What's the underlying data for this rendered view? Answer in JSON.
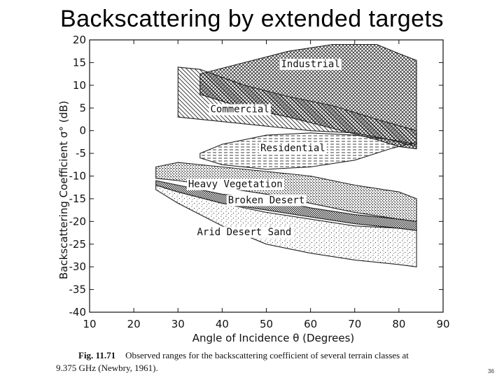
{
  "slide": {
    "title": "Backscattering by extended targets",
    "page_number": "36"
  },
  "caption": {
    "figure_label": "Fig. 11.71",
    "line1": "Observed ranges for the backscattering coefficient of several terrain classes at",
    "line2": "9.375 GHz (Newbry, 1961)."
  },
  "chart_data": {
    "type": "area",
    "xlabel": "Angle of Incidence θ  (Degrees)",
    "ylabel": "Backscattering Coefficient σ° (dB)",
    "xlim": [
      10,
      90
    ],
    "ylim": [
      -40,
      20
    ],
    "x_ticks": [
      10,
      20,
      30,
      40,
      50,
      60,
      70,
      80,
      90
    ],
    "y_ticks": [
      20,
      15,
      10,
      5,
      0,
      -5,
      -10,
      -15,
      -20,
      -25,
      -30,
      -35,
      -40
    ],
    "grid": false,
    "regions": [
      {
        "name": "Industrial",
        "color": "#222222",
        "upper": [
          [
            35,
            12.5
          ],
          [
            45,
            15
          ],
          [
            55,
            17.5
          ],
          [
            65,
            19
          ],
          [
            75,
            19
          ],
          [
            80,
            17
          ],
          [
            84,
            15.5
          ]
        ],
        "lower": [
          [
            35,
            8
          ],
          [
            45,
            5
          ],
          [
            55,
            3
          ],
          [
            65,
            0.5
          ],
          [
            75,
            -2
          ],
          [
            80,
            -3.5
          ],
          [
            84,
            -4
          ]
        ]
      },
      {
        "name": "Commercial",
        "color": "#222222",
        "upper": [
          [
            30,
            14
          ],
          [
            35,
            13.5
          ],
          [
            45,
            10
          ],
          [
            55,
            7.5
          ],
          [
            65,
            5.5
          ],
          [
            75,
            2.5
          ],
          [
            84,
            0
          ]
        ],
        "lower": [
          [
            30,
            3
          ],
          [
            40,
            2
          ],
          [
            50,
            1
          ],
          [
            60,
            0
          ],
          [
            70,
            -0.5
          ],
          [
            78,
            -2
          ],
          [
            84,
            -3
          ]
        ]
      },
      {
        "name": "Residential",
        "color": "#222222",
        "upper": [
          [
            35,
            -5
          ],
          [
            40,
            -3
          ],
          [
            50,
            -1
          ],
          [
            60,
            -0.5
          ],
          [
            70,
            -1
          ],
          [
            78,
            -2
          ],
          [
            84,
            -3.5
          ]
        ],
        "lower": [
          [
            35,
            -6
          ],
          [
            40,
            -7.5
          ],
          [
            50,
            -8.5
          ],
          [
            60,
            -8
          ],
          [
            70,
            -6.5
          ],
          [
            78,
            -4
          ],
          [
            84,
            -2.5
          ]
        ]
      },
      {
        "name": "Heavy Vegetation",
        "color": "#222222",
        "upper": [
          [
            25,
            -8
          ],
          [
            30,
            -7
          ],
          [
            40,
            -8
          ],
          [
            50,
            -9
          ],
          [
            60,
            -10
          ],
          [
            70,
            -12
          ],
          [
            80,
            -13.5
          ],
          [
            84,
            -15
          ]
        ],
        "lower": [
          [
            25,
            -10.5
          ],
          [
            30,
            -11
          ],
          [
            40,
            -12.5
          ],
          [
            50,
            -14
          ],
          [
            60,
            -16
          ],
          [
            70,
            -18
          ],
          [
            80,
            -19.5
          ],
          [
            84,
            -20
          ]
        ]
      },
      {
        "name": "Broken Desert",
        "color": "#222222",
        "upper": [
          [
            25,
            -11
          ],
          [
            30,
            -12
          ],
          [
            40,
            -14
          ],
          [
            50,
            -15
          ],
          [
            60,
            -17
          ],
          [
            70,
            -18.5
          ],
          [
            80,
            -19.5
          ],
          [
            84,
            -20
          ]
        ],
        "lower": [
          [
            25,
            -12
          ],
          [
            30,
            -13.5
          ],
          [
            40,
            -16
          ],
          [
            50,
            -17.5
          ],
          [
            60,
            -19
          ],
          [
            70,
            -20.5
          ],
          [
            80,
            -21.5
          ],
          [
            84,
            -22
          ]
        ]
      },
      {
        "name": "Arid Desert Sand",
        "color": "#222222",
        "upper": [
          [
            25,
            -12
          ],
          [
            30,
            -13.5
          ],
          [
            40,
            -16
          ],
          [
            50,
            -18
          ],
          [
            60,
            -19.5
          ],
          [
            70,
            -21
          ],
          [
            80,
            -21.5
          ],
          [
            84,
            -22
          ]
        ],
        "lower": [
          [
            25,
            -13
          ],
          [
            30,
            -16
          ],
          [
            40,
            -21
          ],
          [
            50,
            -25
          ],
          [
            60,
            -27
          ],
          [
            70,
            -28.5
          ],
          [
            80,
            -29.5
          ],
          [
            84,
            -30
          ]
        ]
      }
    ],
    "region_labels": [
      {
        "name": "Industrial",
        "at": [
          60,
          14
        ]
      },
      {
        "name": "Commercial",
        "at": [
          44,
          4
        ]
      },
      {
        "name": "Residential",
        "at": [
          56,
          -4.5
        ]
      },
      {
        "name": "Heavy Vegetation",
        "at": [
          43,
          -12.5
        ]
      },
      {
        "name": "Broken Desert",
        "at": [
          50,
          -16
        ]
      },
      {
        "name": "Arid Desert Sand",
        "at": [
          45,
          -23
        ]
      }
    ]
  }
}
